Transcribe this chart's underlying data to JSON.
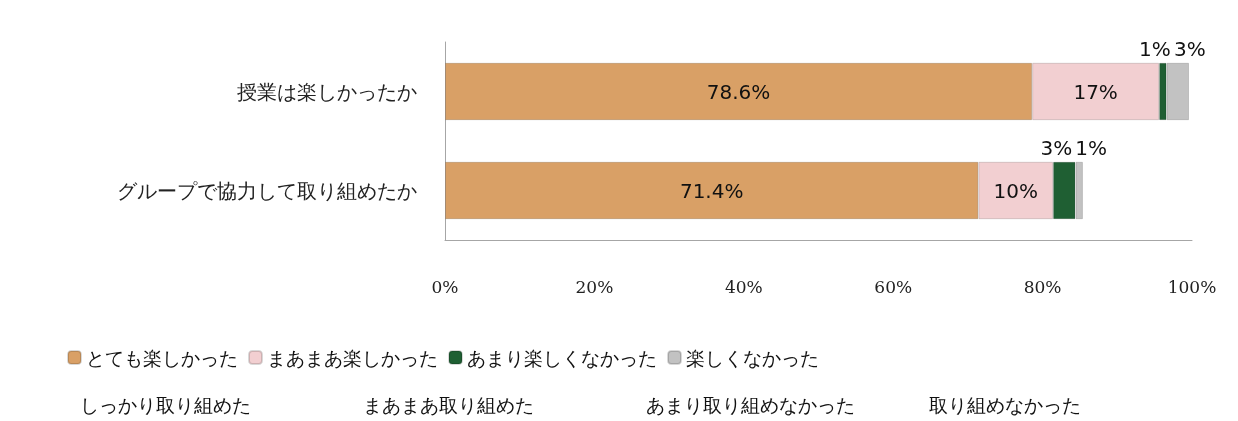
{
  "chart_data": {
    "type": "bar",
    "orientation": "horizontal",
    "stacked": true,
    "categories": [
      "授業は楽しかったか",
      "グループで協力して取り組めたか"
    ],
    "series": [
      {
        "name": "とても楽しかった",
        "color": "#d9a066",
        "values": [
          78.6,
          71.4
        ],
        "value_labels": [
          "78.6%",
          "71.4%"
        ]
      },
      {
        "name": "まあまあ楽しかった",
        "color": "#f2cfd1",
        "values": [
          17,
          10
        ],
        "value_labels": [
          "17%",
          "10%"
        ]
      },
      {
        "name": "あまり楽しくなかった",
        "color": "#1f5f33",
        "values": [
          1,
          3
        ],
        "value_labels": [
          "1%",
          "3%"
        ]
      },
      {
        "name": "楽しくなかった",
        "color": "#c2c2c2",
        "values": [
          3,
          1
        ],
        "value_labels": [
          "3%",
          "1%"
        ]
      }
    ],
    "annotations": [
      "しっかり取り組めた",
      "まあまあ取り組めた",
      "あまり取り組めなかった",
      "取り組めなかった"
    ],
    "xlim": [
      0,
      100
    ],
    "xticks": [
      {
        "value": 0,
        "label": "0%"
      },
      {
        "value": 20,
        "label": "20%"
      },
      {
        "value": 40,
        "label": "40%"
      },
      {
        "value": 60,
        "label": "60%"
      },
      {
        "value": 80,
        "label": "80%"
      },
      {
        "value": 100,
        "label": "100%"
      }
    ],
    "grid": false,
    "legend": "bottom"
  }
}
